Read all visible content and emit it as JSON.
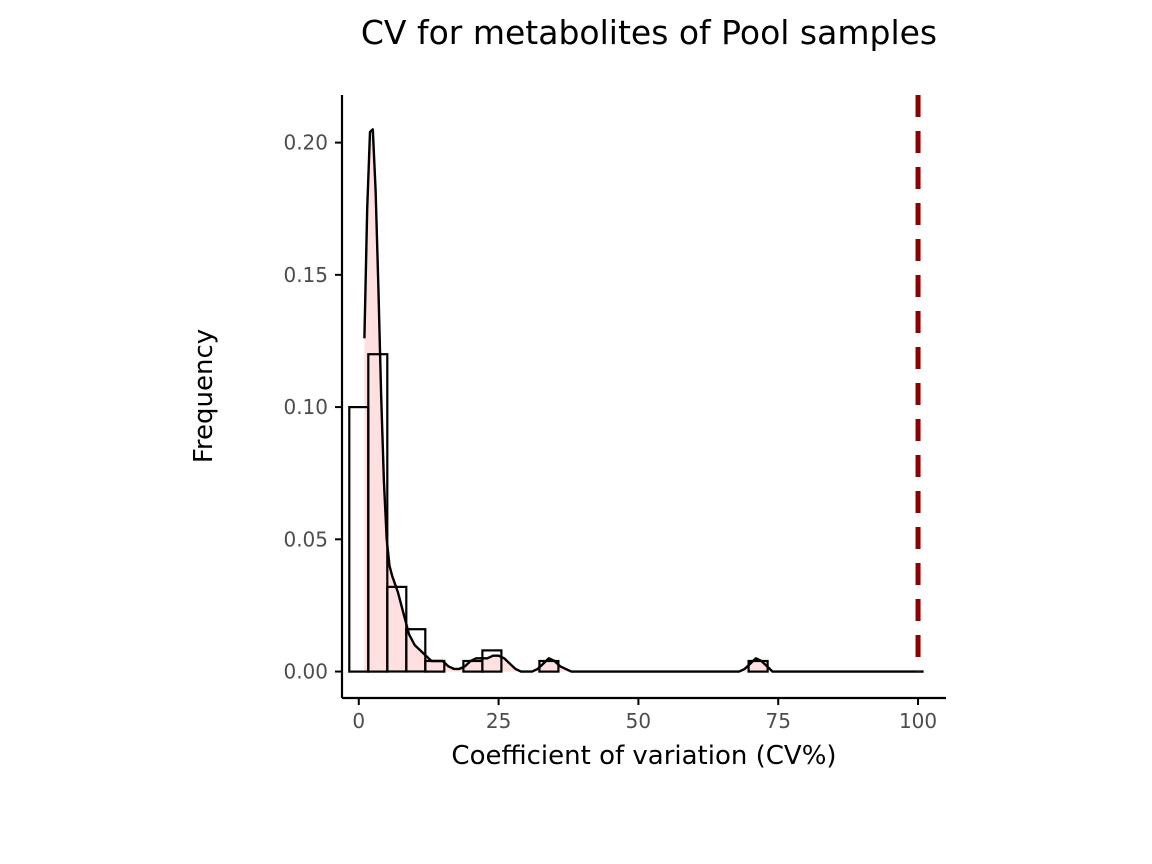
{
  "chart_data": {
    "type": "bar",
    "title": "CV for metabolites of Pool samples",
    "xlabel": "Coefficient of variation (CV%)",
    "ylabel": "Frequency",
    "xlim": [
      -3,
      105
    ],
    "ylim": [
      -0.01,
      0.218
    ],
    "x_ticks": [
      0,
      25,
      50,
      75,
      100
    ],
    "x_tick_labels": [
      "0",
      "25",
      "50",
      "75",
      "100"
    ],
    "y_ticks": [
      0,
      0.05,
      0.1,
      0.15,
      0.2
    ],
    "y_tick_labels": [
      "0.00",
      "0.05",
      "0.10",
      "0.15",
      "0.20"
    ],
    "grid": false,
    "legend": "none",
    "histogram": {
      "bin_width": 3.4,
      "bins": [
        {
          "start": -1.7,
          "end": 1.7,
          "density": 0.1
        },
        {
          "start": 1.7,
          "end": 5.1,
          "density": 0.12
        },
        {
          "start": 5.1,
          "end": 8.5,
          "density": 0.032
        },
        {
          "start": 8.5,
          "end": 11.9,
          "density": 0.016
        },
        {
          "start": 11.9,
          "end": 15.3,
          "density": 0.004
        },
        {
          "start": 18.7,
          "end": 22.1,
          "density": 0.004
        },
        {
          "start": 22.1,
          "end": 25.5,
          "density": 0.008
        },
        {
          "start": 32.3,
          "end": 35.7,
          "density": 0.004
        },
        {
          "start": 69.7,
          "end": 73.1,
          "density": 0.004
        }
      ]
    },
    "density_curve": {
      "x": [
        1.0,
        1.5,
        2.0,
        2.5,
        3.0,
        3.5,
        4.0,
        4.5,
        5.0,
        5.5,
        6.0,
        7.0,
        8.0,
        9.0,
        10.0,
        11.0,
        12.0,
        13.0,
        14.0,
        15.0,
        16.0,
        17.0,
        18.0,
        19.0,
        20.0,
        21.0,
        22.0,
        23.0,
        24.0,
        25.0,
        26.0,
        27.0,
        28.0,
        29.0,
        30.0,
        31.0,
        32.0,
        33.0,
        34.0,
        35.0,
        36.0,
        38.0,
        40.0,
        50.0,
        60.0,
        66.0,
        68.0,
        69.0,
        70.0,
        71.0,
        72.0,
        73.0,
        74.0,
        76.0,
        80.0,
        90.0,
        101.0
      ],
      "y": [
        0.126,
        0.175,
        0.204,
        0.205,
        0.182,
        0.145,
        0.105,
        0.072,
        0.05,
        0.04,
        0.036,
        0.03,
        0.022,
        0.014,
        0.01,
        0.008,
        0.006,
        0.004,
        0.004,
        0.004,
        0.002,
        0.001,
        0.001,
        0.002,
        0.004,
        0.005,
        0.005,
        0.005,
        0.006,
        0.006,
        0.005,
        0.003,
        0.001,
        0.0,
        0.0,
        0.0,
        0.001,
        0.003,
        0.005,
        0.004,
        0.002,
        0.0,
        0.0,
        0.0,
        0.0,
        0.0,
        0.0,
        0.001,
        0.003,
        0.005,
        0.004,
        0.002,
        0.0,
        0.0,
        0.0,
        0.0,
        0.0
      ]
    },
    "vline": {
      "x": 100,
      "style": "dashed",
      "color": "#8b0000"
    },
    "colors": {
      "fill": "#ffe0e0",
      "bar_edge": "#000000",
      "curve": "#000000",
      "axis": "#000000"
    }
  }
}
